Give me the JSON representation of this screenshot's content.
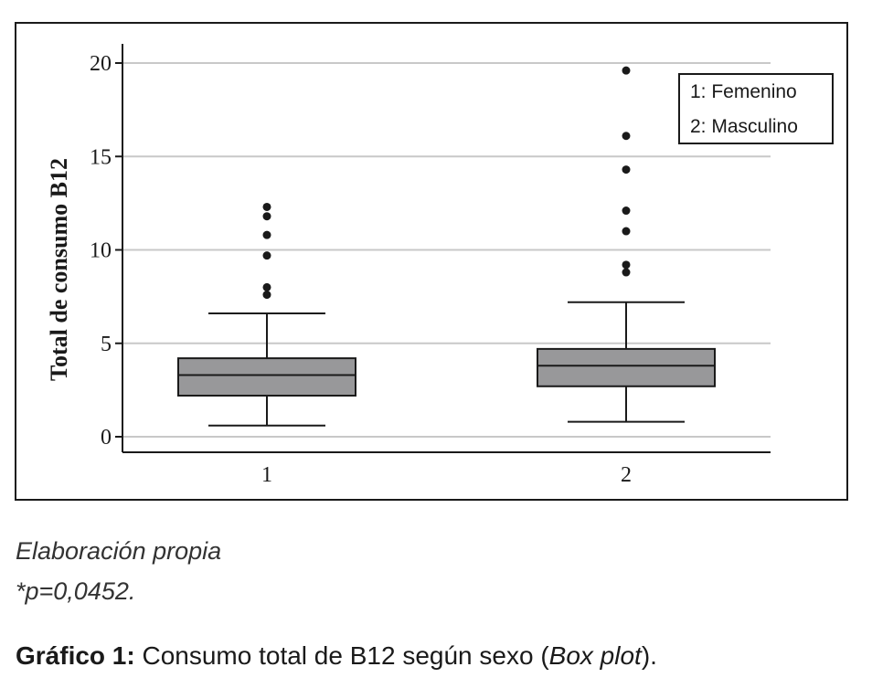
{
  "chart_data": {
    "type": "boxplot",
    "ylabel": "Total de consumo B12",
    "ylim": [
      0,
      21
    ],
    "yticks": [
      0,
      5,
      10,
      15,
      20
    ],
    "categories": [
      "1",
      "2"
    ],
    "grid": true,
    "legend": {
      "placement": "top-right",
      "entries": [
        "1: Femenino",
        "2: Masculino"
      ]
    },
    "boxes": [
      {
        "category": "1",
        "min": 0.6,
        "q1": 2.2,
        "median": 3.3,
        "q3": 4.2,
        "max": 6.6,
        "outliers": [
          7.6,
          8.0,
          9.7,
          10.8,
          11.8,
          12.3
        ]
      },
      {
        "category": "2",
        "min": 0.8,
        "q1": 2.7,
        "median": 3.8,
        "q3": 4.7,
        "max": 7.2,
        "outliers": [
          8.8,
          9.2,
          11.0,
          12.1,
          14.3,
          16.1,
          19.6
        ]
      }
    ],
    "colors": {
      "box_fill": "#98989a",
      "stroke": "#1a1a1a",
      "grid": "#c8c8c8"
    }
  },
  "notes": {
    "source": "Elaboración propia",
    "pvalue": "*p=0,0452."
  },
  "caption": {
    "label": "Gráfico 1:",
    "text": " Consumo total de B12 según sexo (",
    "italic": "Box plot",
    "end": ")."
  }
}
